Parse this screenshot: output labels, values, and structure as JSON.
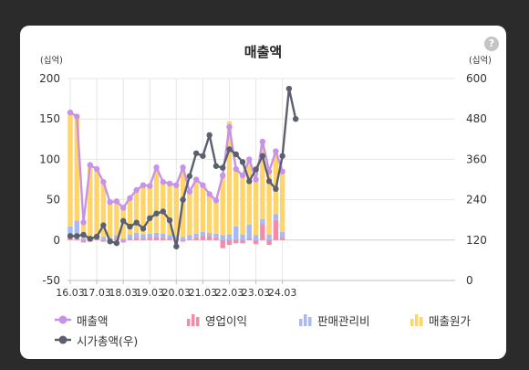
{
  "card": {
    "help_icon": "?",
    "left_unit": "(십억)",
    "right_unit": "(십억)"
  },
  "chart_data": {
    "type": "bar",
    "title": "매출액",
    "stacked": true,
    "categories": [
      "16.03",
      "16.06",
      "16.09",
      "16.12",
      "17.03",
      "17.06",
      "17.09",
      "17.12",
      "18.03",
      "18.06",
      "18.09",
      "18.12",
      "19.03",
      "19.06",
      "19.09",
      "19.12",
      "20.03",
      "20.06",
      "20.09",
      "20.12",
      "21.03",
      "21.06",
      "21.09",
      "21.12",
      "22.03",
      "22.06",
      "22.09",
      "22.12",
      "23.03",
      "23.06",
      "23.09",
      "23.12",
      "24.03",
      "24.06",
      "24.09"
    ],
    "xtick_labels": [
      "16.03",
      "17.03",
      "18.03",
      "19.03",
      "20.03",
      "21.03",
      "22.03",
      "23.03",
      "24.03"
    ],
    "ylim_left": [
      -50,
      200
    ],
    "yticks_left": [
      -50,
      0,
      50,
      100,
      150,
      200
    ],
    "ylim_right": [
      0,
      600
    ],
    "yticks_right": [
      0,
      120,
      240,
      360,
      480,
      600
    ],
    "colors": {
      "매출액": "#c792e8",
      "영업이익": "#f48ba9",
      "판매관리비": "#a9b9f2",
      "매출원가": "#ffd56b",
      "시가총액(우)": "#5c5f6e"
    },
    "series": [
      {
        "name": "매출액",
        "kind": "line",
        "axis": "left",
        "values": [
          158,
          153,
          22,
          93,
          88,
          72,
          47,
          48,
          40,
          52,
          62,
          68,
          67,
          90,
          72,
          70,
          68,
          90,
          60,
          75,
          68,
          57,
          49,
          80,
          140,
          88,
          80,
          100,
          75,
          122,
          85,
          110,
          85,
          null,
          null
        ]
      },
      {
        "name": "영업이익",
        "kind": "bar",
        "axis": "left",
        "values": [
          4,
          4,
          -3,
          -2,
          2,
          -2,
          -1,
          3,
          -3,
          2,
          3,
          2,
          3,
          4,
          3,
          2,
          1,
          -2,
          1,
          3,
          5,
          5,
          3,
          -10,
          -6,
          -4,
          -4,
          2,
          -5,
          20,
          -6,
          25,
          3,
          null,
          null
        ]
      },
      {
        "name": "판매관리비",
        "kind": "bar",
        "axis": "left",
        "values": [
          13,
          20,
          3,
          3,
          5,
          4,
          3,
          3,
          2,
          5,
          6,
          5,
          5,
          5,
          5,
          4,
          4,
          4,
          5,
          5,
          5,
          4,
          5,
          6,
          7,
          17,
          7,
          17,
          6,
          6,
          7,
          7,
          7,
          null,
          null
        ]
      },
      {
        "name": "매출원가",
        "kind": "bar",
        "axis": "left",
        "values": [
          140,
          130,
          18,
          90,
          80,
          65,
          42,
          42,
          36,
          45,
          53,
          61,
          59,
          83,
          64,
          64,
          63,
          84,
          54,
          67,
          58,
          49,
          42,
          75,
          140,
          70,
          75,
          80,
          70,
          96,
          78,
          78,
          75,
          null,
          null
        ]
      },
      {
        "name": "시가총액(우)",
        "kind": "line",
        "axis": "right",
        "values": [
          132,
          132,
          136,
          124,
          130,
          164,
          116,
          111,
          177,
          160,
          172,
          154,
          185,
          199,
          205,
          179,
          101,
          240,
          310,
          378,
          370,
          432,
          340,
          335,
          390,
          375,
          352,
          295,
          330,
          370,
          295,
          272,
          370,
          570,
          480
        ]
      }
    ]
  }
}
